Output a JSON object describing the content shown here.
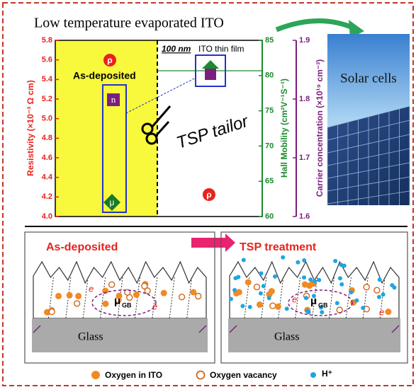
{
  "title": "Low temperature evaporated ITO",
  "plot": {
    "left_axis": {
      "label": "Resistivity (×10⁻³ Ω cm)",
      "ticks": [
        "4.0",
        "4.2",
        "4.4",
        "4.6",
        "4.8",
        "5.0",
        "5.2",
        "5.4",
        "5.6",
        "5.8"
      ]
    },
    "mobility_axis": {
      "label": "Hall Mobility (cm²V⁻¹S⁻¹)",
      "ticks": [
        "60",
        "65",
        "70",
        "75",
        "80",
        "85"
      ]
    },
    "carrier_axis": {
      "label": "Carrier concentration (×10¹⁹ cm⁻³)",
      "ticks": [
        "1.6",
        "1.7",
        "1.8",
        "1.9"
      ]
    },
    "state_label": "As-deposited",
    "film_thickness": "100 nm",
    "film_label": "ITO thin film",
    "tailor": "TSP tailor",
    "markers": {
      "rho": "ρ",
      "n": "n",
      "mu": "μ"
    }
  },
  "photo_label": "Solar cells",
  "panels": [
    {
      "title": "As-deposited",
      "electron": "e",
      "mobility": "μ",
      "mobility_sub": "GB",
      "substrate": "Glass"
    },
    {
      "title": "TSP  treatment",
      "electron": "e",
      "mobility": "μ",
      "mobility_sub": "GB",
      "substrate": "Glass"
    }
  ],
  "legend": [
    "Oxygen in ITO",
    "Oxygen vacancy",
    "H⁺"
  ]
}
